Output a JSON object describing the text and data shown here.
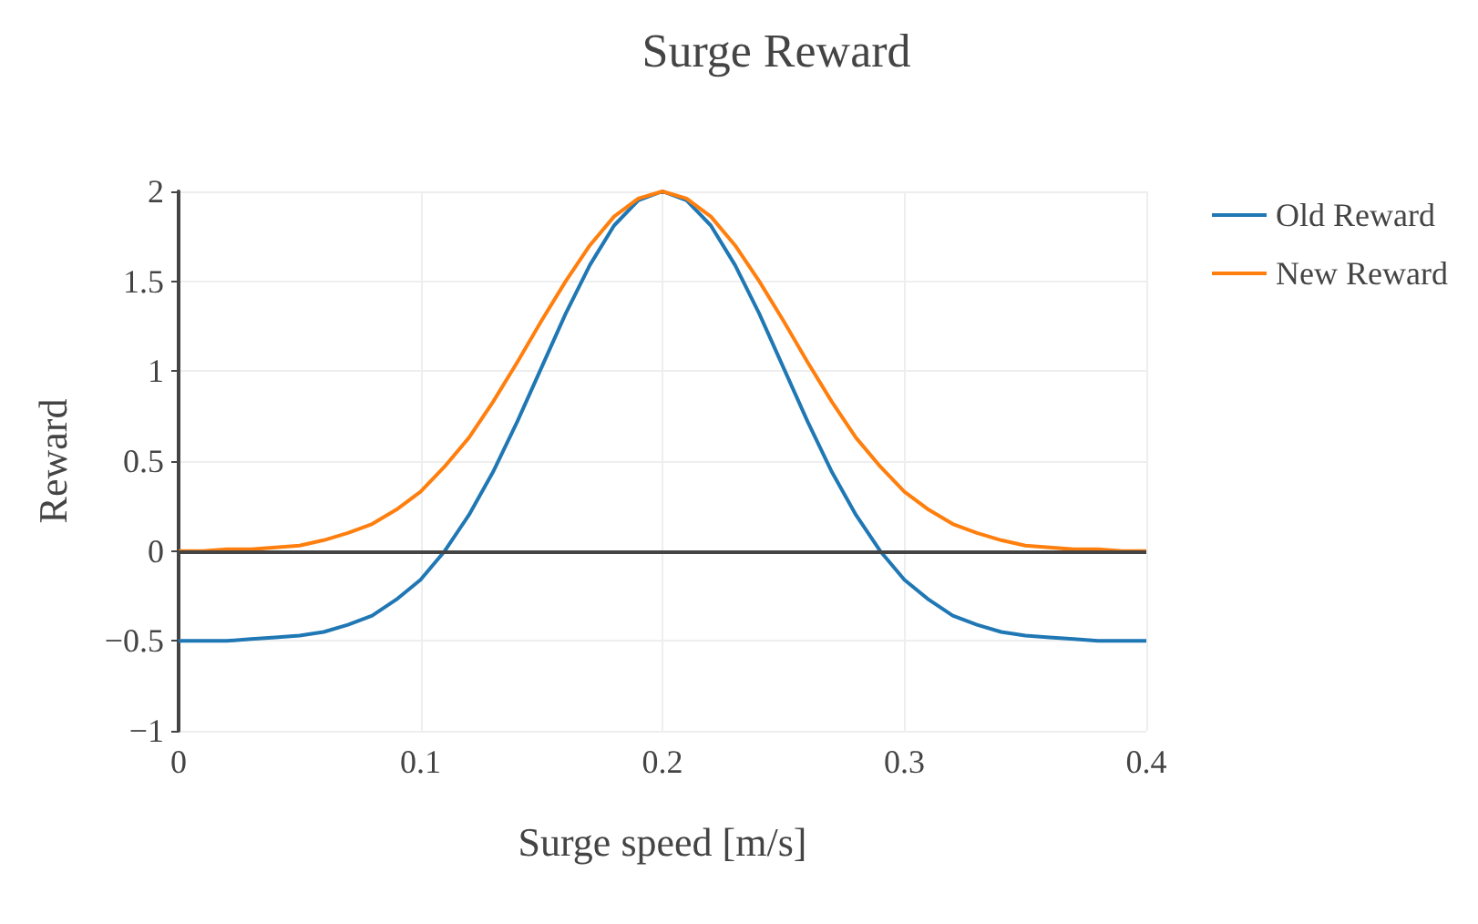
{
  "chart_data": {
    "type": "line",
    "title": "Surge Reward",
    "xlabel": "Surge speed [m/s]",
    "ylabel": "Reward",
    "x": [
      0,
      0.01,
      0.02,
      0.03,
      0.04,
      0.05,
      0.06,
      0.07,
      0.08,
      0.09,
      0.1,
      0.11,
      0.12,
      0.13,
      0.14,
      0.15,
      0.16,
      0.17,
      0.18,
      0.19,
      0.2,
      0.21,
      0.22,
      0.23,
      0.24,
      0.25,
      0.26,
      0.27,
      0.28,
      0.29,
      0.3,
      0.31,
      0.32,
      0.33,
      0.34,
      0.35,
      0.36,
      0.37,
      0.38,
      0.39,
      0.4
    ],
    "series": [
      {
        "name": "Old Reward",
        "color": "#1f77b4",
        "values": [
          -0.5,
          -0.5,
          -0.5,
          -0.49,
          -0.48,
          -0.47,
          -0.45,
          -0.41,
          -0.36,
          -0.27,
          -0.16,
          0,
          0.2,
          0.44,
          0.72,
          1.02,
          1.32,
          1.59,
          1.81,
          1.95,
          2,
          1.95,
          1.81,
          1.59,
          1.32,
          1.02,
          0.72,
          0.44,
          0.2,
          0,
          -0.16,
          -0.27,
          -0.36,
          -0.41,
          -0.45,
          -0.47,
          -0.48,
          -0.49,
          -0.5,
          -0.5,
          -0.5
        ]
      },
      {
        "name": "New Reward",
        "color": "#ff7f0e",
        "values": [
          0,
          0,
          0.01,
          0.01,
          0.02,
          0.03,
          0.06,
          0.1,
          0.15,
          0.23,
          0.33,
          0.47,
          0.63,
          0.83,
          1.05,
          1.28,
          1.5,
          1.7,
          1.86,
          1.96,
          2,
          1.96,
          1.86,
          1.7,
          1.5,
          1.28,
          1.05,
          0.83,
          0.63,
          0.47,
          0.33,
          0.23,
          0.15,
          0.1,
          0.06,
          0.03,
          0.02,
          0.01,
          0.01,
          0,
          0
        ]
      }
    ],
    "xlim": [
      0,
      0.4
    ],
    "xticks": [
      0,
      0.1,
      0.2,
      0.3,
      0.4
    ],
    "ylim": [
      -1,
      2
    ],
    "yticks": [
      {
        "value": -1,
        "label": "−1"
      },
      {
        "value": -0.5,
        "label": "−0.5"
      },
      0,
      0.5,
      1,
      1.5,
      2
    ],
    "ref_lines": [
      {
        "axis": "y",
        "value": 0,
        "color": "#444444"
      }
    ],
    "grid": true,
    "legend": "top right",
    "marker": "none",
    "line_style": "solid"
  }
}
